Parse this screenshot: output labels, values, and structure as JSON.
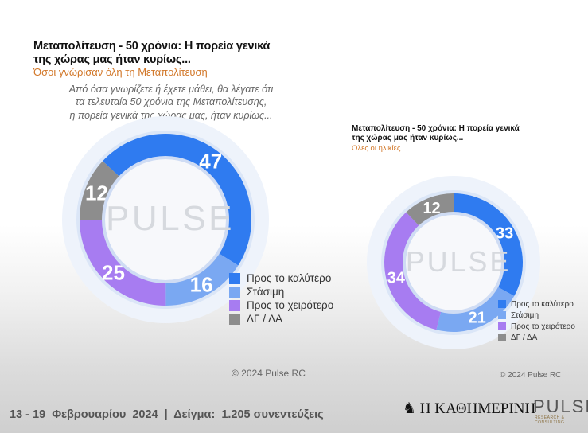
{
  "chart_data": [
    {
      "type": "pie",
      "title": "Μεταπολίτευση - 50 χρόνια: Η πορεία γενικά της χώρας μας ήταν κυρίως...",
      "subtitle": "Όσοι γνώρισαν όλη τη Μεταπολίτευση",
      "question": [
        "Από όσα γνωρίζετε ή έχετε μάθει, θα λέγατε ότι",
        "τα τελευταία 50 χρόνια της Μεταπολίτευσης,",
        "η πορεία γενικά της χώρας μας, ήταν κυρίως..."
      ],
      "categories": [
        "Προς το καλύτερο",
        "Στάσιμη",
        "Προς το χειρότερο",
        "ΔΓ / ΔΑ"
      ],
      "values": [
        47,
        16,
        25,
        12
      ],
      "colors": [
        "#2f7bf0",
        "#7aa8f2",
        "#a77cf1",
        "#8d8d8d"
      ],
      "donut": true,
      "start_angle_deg": -47,
      "legend_position": "bottom-right",
      "watermark": "PULSE",
      "copyright": "© 2024 Pulse RC"
    },
    {
      "type": "pie",
      "title": "Μεταπολίτευση - 50 χρόνια: Η πορεία γενικά της χώρας μας ήταν κυρίως...",
      "subtitle": "Όλες οι ηλικίες",
      "categories": [
        "Προς το καλύτερο",
        "Στάσιμη",
        "Προς το χειρότερο",
        "ΔΓ / ΔΑ"
      ],
      "values": [
        33,
        21,
        34,
        12
      ],
      "colors": [
        "#2f7bf0",
        "#7aa8f2",
        "#a77cf1",
        "#8d8d8d"
      ],
      "donut": true,
      "start_angle_deg": 0,
      "legend_position": "bottom-right",
      "watermark": "PULSE",
      "copyright": "© 2024 Pulse RC"
    }
  ],
  "footer": {
    "text": "13 - 19  Φεβρουαρίου  2024  |  Δείγμα:  1.205 συνεντεύξεις",
    "brand": "Η ΚΑΘΗΜΕΡΙΝΗ",
    "brand_icon": "griffin-icon",
    "logo": "PULSE",
    "logo_sub": "RESEARCH & CONSULTING"
  }
}
